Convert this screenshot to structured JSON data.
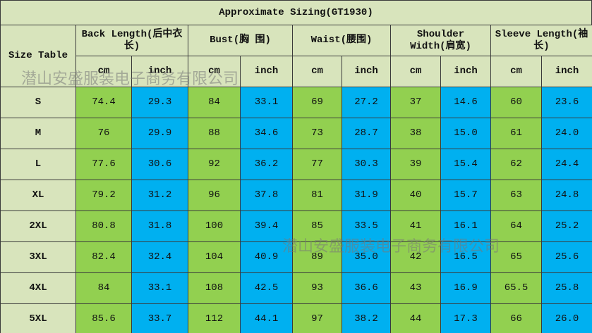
{
  "table": {
    "title": "Approximate Sizing(GT1930)",
    "size_header": "Size Table",
    "groups": [
      {
        "label": "Back Length(后中衣长)",
        "units": [
          "cm",
          "inch"
        ]
      },
      {
        "label": "Bust(胸 围)",
        "units": [
          "cm",
          "inch"
        ]
      },
      {
        "label": "Waist(腰围)",
        "units": [
          "cm",
          "inch"
        ]
      },
      {
        "label": "Shoulder Width(肩宽)",
        "units": [
          "cm",
          "inch"
        ]
      },
      {
        "label": "Sleeve Length(袖 长)",
        "units": [
          "cm",
          "inch"
        ]
      }
    ],
    "rows": [
      [
        "S",
        "74.4",
        "29.3",
        "84",
        "33.1",
        "69",
        "27.2",
        "37",
        "14.6",
        "60",
        "23.6"
      ],
      [
        "M",
        "76",
        "29.9",
        "88",
        "34.6",
        "73",
        "28.7",
        "38",
        "15.0",
        "61",
        "24.0"
      ],
      [
        "L",
        "77.6",
        "30.6",
        "92",
        "36.2",
        "77",
        "30.3",
        "39",
        "15.4",
        "62",
        "24.4"
      ],
      [
        "XL",
        "79.2",
        "31.2",
        "96",
        "37.8",
        "81",
        "31.9",
        "40",
        "15.7",
        "63",
        "24.8"
      ],
      [
        "2XL",
        "80.8",
        "31.8",
        "100",
        "39.4",
        "85",
        "33.5",
        "41",
        "16.1",
        "64",
        "25.2"
      ],
      [
        "3XL",
        "82.4",
        "32.4",
        "104",
        "40.9",
        "89",
        "35.0",
        "42",
        "16.5",
        "65",
        "25.6"
      ],
      [
        "4XL",
        "84",
        "33.1",
        "108",
        "42.5",
        "93",
        "36.6",
        "43",
        "16.9",
        "65.5",
        "25.8"
      ],
      [
        "5XL",
        "85.6",
        "33.7",
        "112",
        "44.1",
        "97",
        "38.2",
        "44",
        "17.3",
        "66",
        "26.0"
      ]
    ],
    "watermarks": [
      "潜山安盛服装电子商务有限公司",
      "潜山安盛服装电子商务有限公司"
    ]
  }
}
